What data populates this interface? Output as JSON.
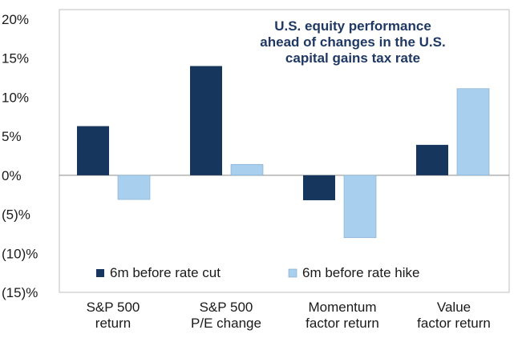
{
  "chart_data": {
    "type": "bar",
    "title_lines": [
      "U.S. equity performance",
      "ahead of changes in the U.S.",
      "capital gains tax rate"
    ],
    "categories": [
      [
        "S&P 500",
        "return"
      ],
      [
        "S&P 500",
        "P/E change"
      ],
      [
        "Momentum",
        "factor return"
      ],
      [
        "Value",
        "factor return"
      ]
    ],
    "series": [
      {
        "name": "6m before rate cut",
        "color": "#17365d",
        "values": [
          6.3,
          14.0,
          -3.2,
          3.9
        ]
      },
      {
        "name": "6m before rate hike",
        "color": "#a9cfee",
        "values": [
          -3.1,
          1.4,
          -8.0,
          11.1
        ]
      }
    ],
    "yticks": [
      20,
      15,
      10,
      5,
      0,
      -5,
      -10,
      -15
    ],
    "ytick_labels": [
      "20%",
      "15%",
      "10%",
      "5%",
      "0%",
      "(5)%",
      "(10)%",
      "(15)%"
    ],
    "ylim": [
      -15,
      20
    ],
    "xlabel": "",
    "ylabel": "",
    "legend_position": "bottom-left inside plot"
  }
}
